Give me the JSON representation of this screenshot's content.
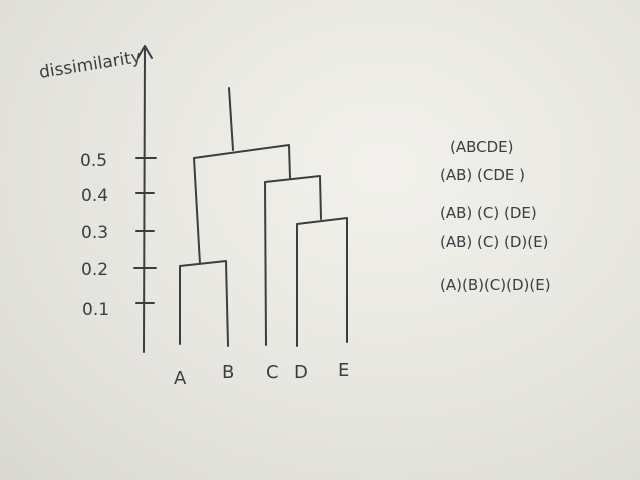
{
  "y_axis": {
    "label": "dissimilarity",
    "ticks": [
      "0.5",
      "0.4",
      "0.3",
      "0.2",
      "0.1"
    ]
  },
  "leaves": [
    "A",
    "B",
    "C",
    "D",
    "E"
  ],
  "clusterings": [
    "(ABCDE)",
    "(AB) (CDE )",
    "(AB) (C) (DE)",
    "(AB) (C) (D)(E)",
    "(A)(B)(C)(D)(E)"
  ]
}
